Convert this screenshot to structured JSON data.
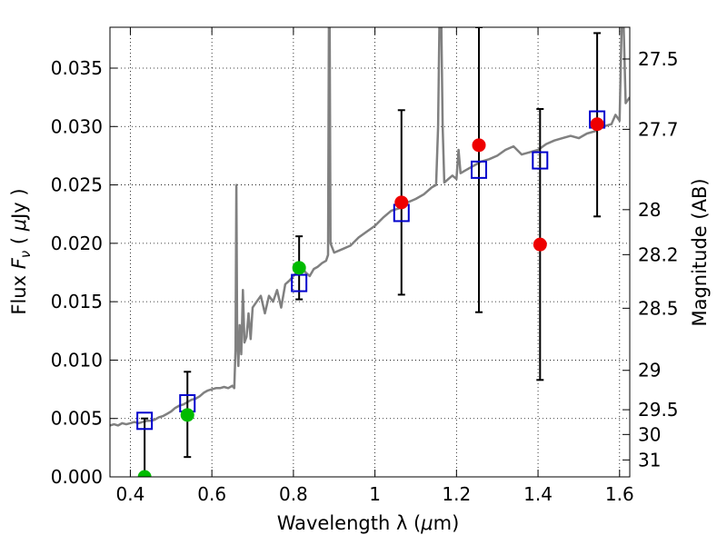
{
  "chart_data": {
    "type": "scatter",
    "title": "",
    "xlabel_text": "Wavelength  λ (",
    "xlabel_mu": "μ",
    "xlabel_unit": "m)",
    "ylabel_left_text": "Flux  ",
    "ylabel_left_symbol": "F",
    "ylabel_left_subscript": "ν",
    "ylabel_left_unit_open": "  ( ",
    "ylabel_left_mu": "μ",
    "ylabel_left_unit_close": "Jy )",
    "ylabel_right": "Magnitude (AB)",
    "xlim": [
      0.35,
      1.625
    ],
    "ylim": [
      0.0,
      0.0385
    ],
    "grid": true,
    "x_ticks": [
      0.4,
      0.6,
      0.8,
      1.0,
      1.2,
      1.4,
      1.6
    ],
    "x_tick_labels": [
      "0.4",
      "0.6",
      "0.8",
      "1",
      "1.2",
      "1.4",
      "1.6"
    ],
    "y_ticks": [
      0.0,
      0.005,
      0.01,
      0.015,
      0.02,
      0.025,
      0.03,
      0.035
    ],
    "y_tick_labels": [
      "0.000",
      "0.005",
      "0.010",
      "0.015",
      "0.020",
      "0.025",
      "0.030",
      "0.035"
    ],
    "right_ticks": [
      {
        "label": "27.5",
        "flux": 0.03578
      },
      {
        "label": "27.7",
        "flux": 0.02976
      },
      {
        "label": "28",
        "flux": 0.02288
      },
      {
        "label": "28.2",
        "flux": 0.01903
      },
      {
        "label": "28.5",
        "flux": 0.01444
      },
      {
        "label": "29",
        "flux": 0.00912
      },
      {
        "label": "29.5",
        "flux": 0.00575
      },
      {
        "label": "30",
        "flux": 0.00363
      },
      {
        "label": "31",
        "flux": 0.00145
      }
    ],
    "model_spectrum": {
      "color": "#808080",
      "points": [
        [
          0.35,
          0.0044
        ],
        [
          0.36,
          0.0045
        ],
        [
          0.37,
          0.0044
        ],
        [
          0.38,
          0.0046
        ],
        [
          0.39,
          0.0045
        ],
        [
          0.4,
          0.0046
        ],
        [
          0.41,
          0.0047
        ],
        [
          0.42,
          0.0046
        ],
        [
          0.43,
          0.0047
        ],
        [
          0.44,
          0.0048
        ],
        [
          0.45,
          0.0048
        ],
        [
          0.46,
          0.0049
        ],
        [
          0.47,
          0.0051
        ],
        [
          0.48,
          0.0052
        ],
        [
          0.49,
          0.0054
        ],
        [
          0.5,
          0.0056
        ],
        [
          0.51,
          0.0059
        ],
        [
          0.52,
          0.0061
        ],
        [
          0.53,
          0.0062
        ],
        [
          0.54,
          0.0064
        ],
        [
          0.55,
          0.0066
        ],
        [
          0.56,
          0.0067
        ],
        [
          0.57,
          0.0069
        ],
        [
          0.58,
          0.0072
        ],
        [
          0.59,
          0.0074
        ],
        [
          0.6,
          0.0075
        ],
        [
          0.61,
          0.0076
        ],
        [
          0.62,
          0.0076
        ],
        [
          0.63,
          0.0077
        ],
        [
          0.64,
          0.0076
        ],
        [
          0.65,
          0.0078
        ],
        [
          0.655,
          0.0076
        ],
        [
          0.658,
          0.011
        ],
        [
          0.66,
          0.025
        ],
        [
          0.662,
          0.012
        ],
        [
          0.665,
          0.0095
        ],
        [
          0.668,
          0.013
        ],
        [
          0.672,
          0.0105
        ],
        [
          0.676,
          0.016
        ],
        [
          0.68,
          0.0115
        ],
        [
          0.685,
          0.012
        ],
        [
          0.69,
          0.014
        ],
        [
          0.695,
          0.0118
        ],
        [
          0.7,
          0.0145
        ],
        [
          0.71,
          0.015
        ],
        [
          0.72,
          0.0155
        ],
        [
          0.73,
          0.014
        ],
        [
          0.74,
          0.0155
        ],
        [
          0.75,
          0.015
        ],
        [
          0.76,
          0.016
        ],
        [
          0.77,
          0.0145
        ],
        [
          0.78,
          0.0165
        ],
        [
          0.79,
          0.0168
        ],
        [
          0.8,
          0.0172
        ],
        [
          0.81,
          0.0176
        ],
        [
          0.82,
          0.018
        ],
        [
          0.83,
          0.0175
        ],
        [
          0.84,
          0.0172
        ],
        [
          0.85,
          0.0178
        ],
        [
          0.86,
          0.018
        ],
        [
          0.87,
          0.0183
        ],
        [
          0.88,
          0.0185
        ],
        [
          0.885,
          0.019
        ],
        [
          0.887,
          0.0385
        ],
        [
          0.889,
          0.0385
        ],
        [
          0.891,
          0.02
        ],
        [
          0.9,
          0.0192
        ],
        [
          0.92,
          0.0195
        ],
        [
          0.94,
          0.0198
        ],
        [
          0.96,
          0.0205
        ],
        [
          0.98,
          0.021
        ],
        [
          1.0,
          0.0215
        ],
        [
          1.02,
          0.0222
        ],
        [
          1.04,
          0.0228
        ],
        [
          1.06,
          0.023
        ],
        [
          1.08,
          0.0235
        ],
        [
          1.1,
          0.0238
        ],
        [
          1.12,
          0.0242
        ],
        [
          1.14,
          0.0248
        ],
        [
          1.15,
          0.025
        ],
        [
          1.155,
          0.03
        ],
        [
          1.158,
          0.0385
        ],
        [
          1.163,
          0.0385
        ],
        [
          1.166,
          0.03
        ],
        [
          1.17,
          0.0252
        ],
        [
          1.18,
          0.0255
        ],
        [
          1.19,
          0.0258
        ],
        [
          1.2,
          0.0255
        ],
        [
          1.205,
          0.028
        ],
        [
          1.21,
          0.026
        ],
        [
          1.22,
          0.0262
        ],
        [
          1.24,
          0.0266
        ],
        [
          1.26,
          0.027
        ],
        [
          1.28,
          0.0272
        ],
        [
          1.3,
          0.0275
        ],
        [
          1.32,
          0.028
        ],
        [
          1.34,
          0.0283
        ],
        [
          1.36,
          0.0276
        ],
        [
          1.38,
          0.0278
        ],
        [
          1.4,
          0.028
        ],
        [
          1.42,
          0.0285
        ],
        [
          1.44,
          0.0288
        ],
        [
          1.46,
          0.029
        ],
        [
          1.48,
          0.0292
        ],
        [
          1.5,
          0.029
        ],
        [
          1.52,
          0.0294
        ],
        [
          1.54,
          0.0296
        ],
        [
          1.56,
          0.03
        ],
        [
          1.58,
          0.0302
        ],
        [
          1.59,
          0.031
        ],
        [
          1.6,
          0.0305
        ],
        [
          1.605,
          0.0385
        ],
        [
          1.61,
          0.0385
        ],
        [
          1.615,
          0.032
        ],
        [
          1.625,
          0.0325
        ]
      ]
    },
    "model_photometry": {
      "color": "#0000cc",
      "marker": "open-square",
      "points": [
        {
          "x": 0.435,
          "y": 0.0048
        },
        {
          "x": 0.54,
          "y": 0.0063
        },
        {
          "x": 0.814,
          "y": 0.0166
        },
        {
          "x": 1.065,
          "y": 0.0226
        },
        {
          "x": 1.255,
          "y": 0.0263
        },
        {
          "x": 1.405,
          "y": 0.0271
        },
        {
          "x": 1.545,
          "y": 0.0306
        }
      ]
    },
    "observed_photometry": [
      {
        "x": 0.435,
        "y": 0.0,
        "err_low": 0.0,
        "err_high": 0.005,
        "color": "#00bb00"
      },
      {
        "x": 0.54,
        "y": 0.0053,
        "err_low": 0.0017,
        "err_high": 0.009,
        "color": "#00bb00"
      },
      {
        "x": 0.814,
        "y": 0.0179,
        "err_low": 0.0152,
        "err_high": 0.0206,
        "color": "#00bb00"
      },
      {
        "x": 1.065,
        "y": 0.0235,
        "err_low": 0.0156,
        "err_high": 0.0314,
        "color": "#ee0000"
      },
      {
        "x": 1.255,
        "y": 0.0284,
        "err_low": 0.0141,
        "err_high": 0.0385,
        "color": "#ee0000"
      },
      {
        "x": 1.405,
        "y": 0.0199,
        "err_low": 0.0083,
        "err_high": 0.0315,
        "color": "#ee0000"
      },
      {
        "x": 1.545,
        "y": 0.0302,
        "err_low": 0.0223,
        "err_high": 0.038,
        "color": "#ee0000"
      }
    ]
  }
}
